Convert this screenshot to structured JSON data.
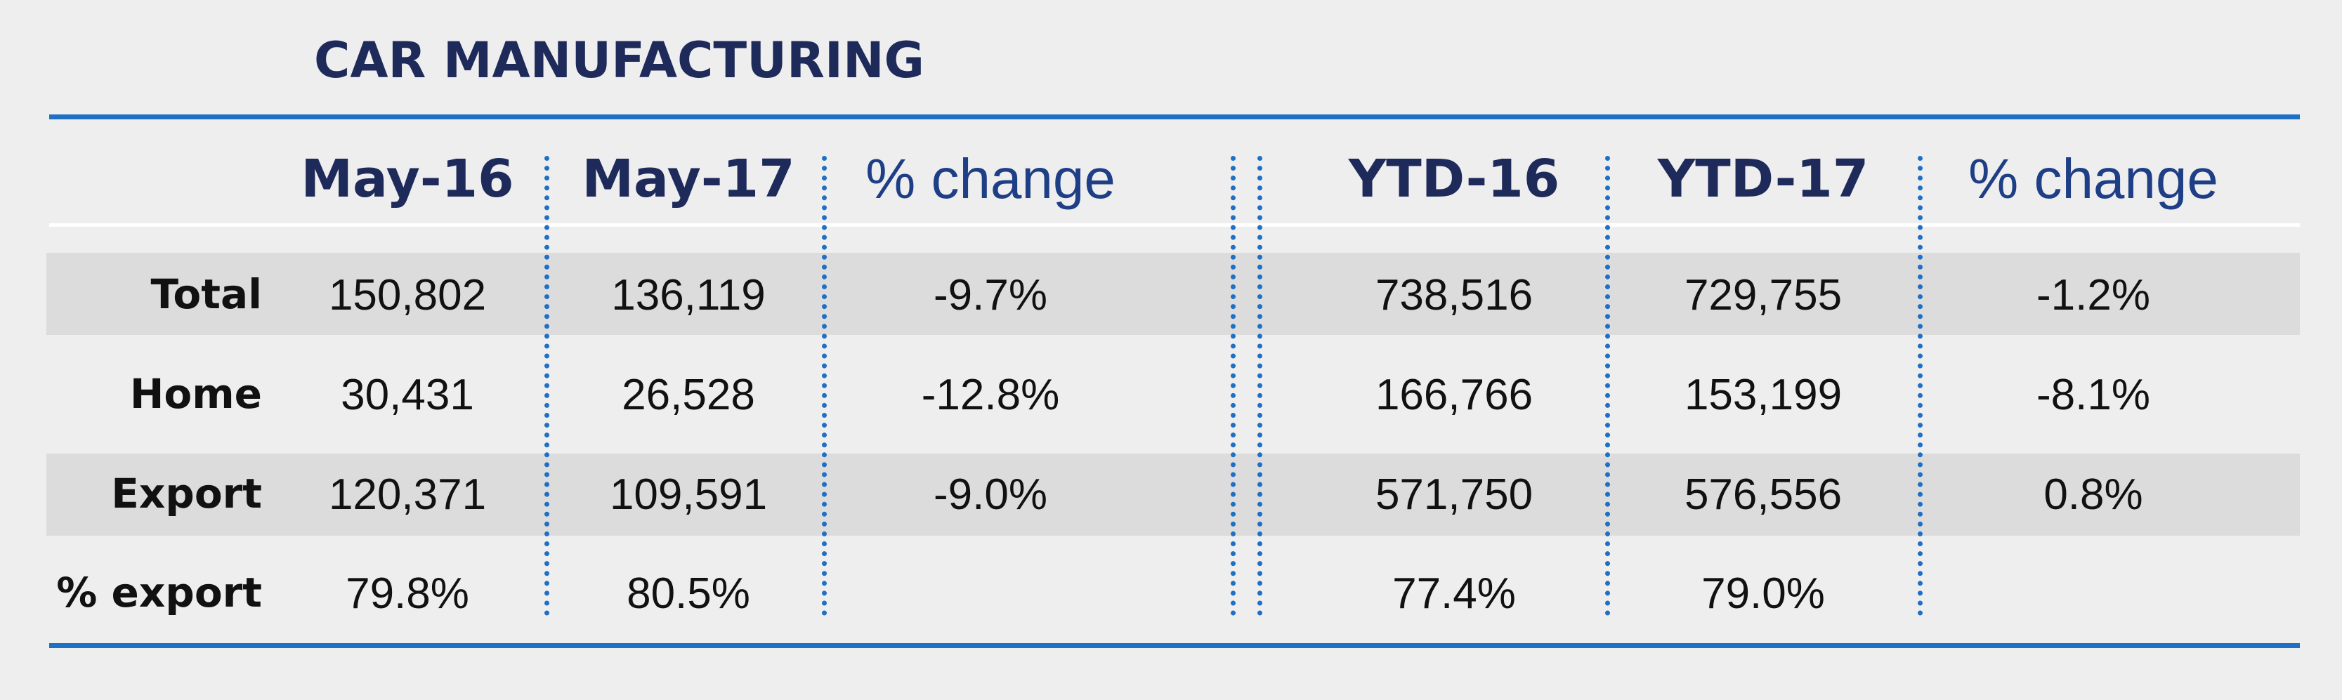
{
  "title": "CAR MANUFACTURING",
  "headers": [
    "May-16",
    "May-17",
    "% change",
    "YTD-16",
    "YTD-17",
    "% change"
  ],
  "rows": [
    {
      "label": "Total",
      "values": [
        "150,802",
        "136,119",
        "-9.7%",
        "738,516",
        "729,755",
        "-1.2%"
      ]
    },
    {
      "label": "Home",
      "values": [
        "30,431",
        "26,528",
        "-12.8%",
        "166,766",
        "153,199",
        "-8.1%"
      ]
    },
    {
      "label": "Export",
      "values": [
        "120,371",
        "109,591",
        "-9.0%",
        "571,750",
        "576,556",
        "0.8%"
      ]
    },
    {
      "label": "% export",
      "values": [
        "79.8%",
        "80.5%",
        "",
        "77.4%",
        "79.0%",
        ""
      ]
    }
  ],
  "colors": {
    "accent": "#1f6fc4",
    "title": "#1e2a5a",
    "band": "#dcdcdd",
    "background": "#eeeeef"
  }
}
